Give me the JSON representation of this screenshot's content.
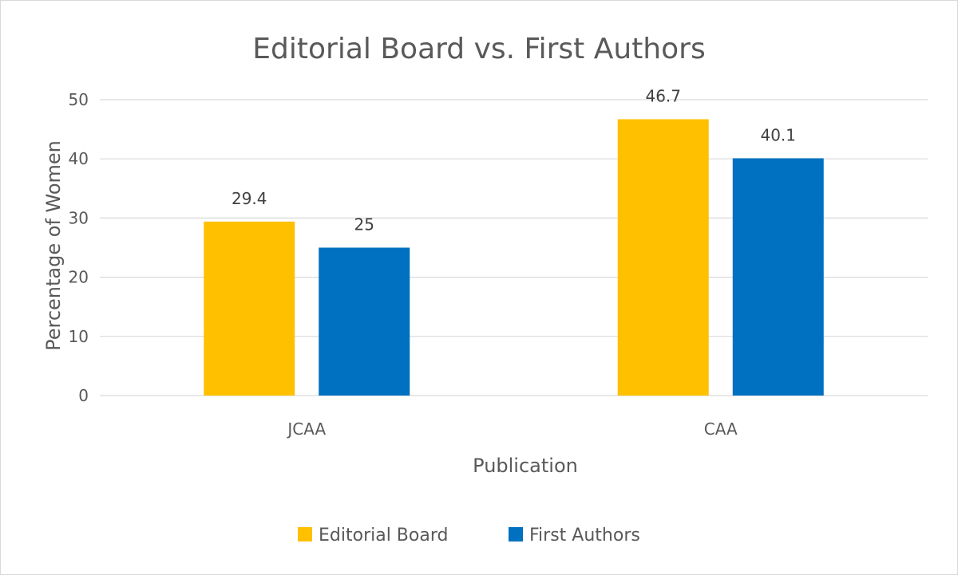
{
  "chart_data": {
    "type": "bar",
    "title": "Editorial Board vs. First Authors",
    "xlabel": "Publication",
    "ylabel": "Percentage of Women",
    "categories": [
      "JCAA",
      "CAA"
    ],
    "series": [
      {
        "name": "Editorial Board",
        "values": [
          29.4,
          46.7
        ],
        "labels": [
          "29.4",
          "46.7"
        ],
        "color": "#FFC000"
      },
      {
        "name": "First Authors",
        "values": [
          25,
          40.1
        ],
        "labels": [
          "25",
          "40.1"
        ],
        "color": "#0070C0"
      }
    ],
    "ylim": [
      0,
      50
    ],
    "yticks": [
      0,
      10,
      20,
      30,
      40,
      50
    ],
    "ytick_labels": [
      "0",
      "10",
      "20",
      "30",
      "40",
      "50"
    ],
    "grid": true,
    "legend_position": "bottom"
  }
}
